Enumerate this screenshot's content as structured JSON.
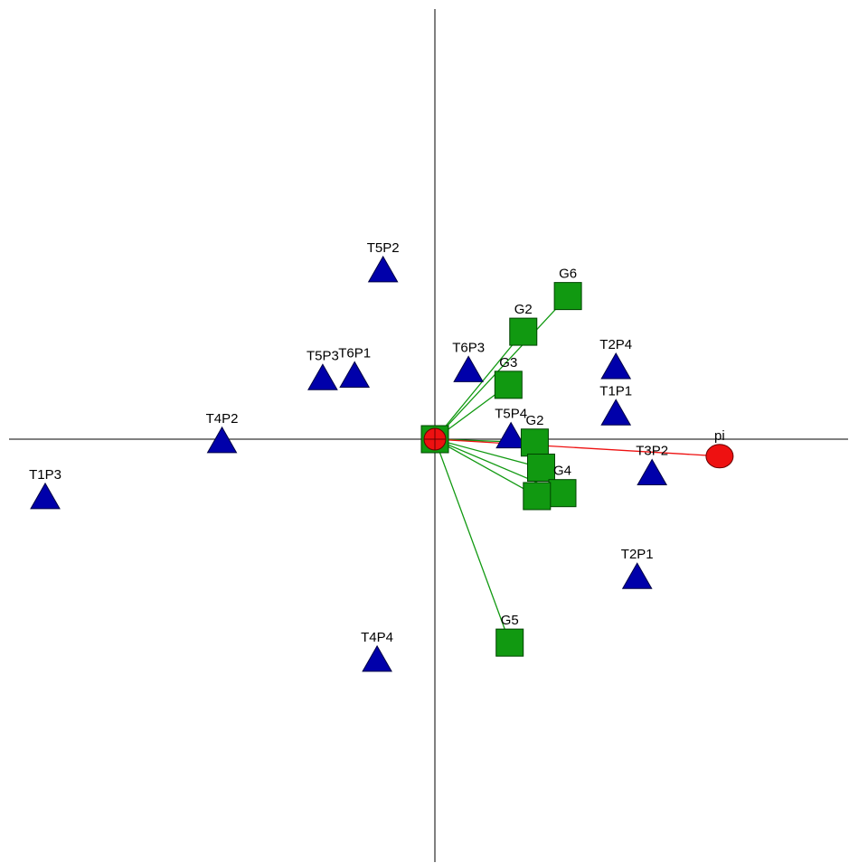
{
  "chart_data": {
    "type": "scatter",
    "title": "",
    "xlabel": "",
    "ylabel": "",
    "xlim": [
      -1.0,
      1.0
    ],
    "ylim": [
      -1.0,
      1.0
    ],
    "grid": false,
    "legend": "none",
    "origin": {
      "x": 0.0,
      "y": 0.0
    },
    "series": [
      {
        "marker": "triangle",
        "color": "#0000aa",
        "points": [
          {
            "label": "T1P3",
            "x": -0.917,
            "y": -0.138
          },
          {
            "label": "T4P2",
            "x": -0.501,
            "y": -0.006
          },
          {
            "label": "T5P3",
            "x": -0.264,
            "y": 0.142
          },
          {
            "label": "T6P1",
            "x": -0.189,
            "y": 0.148
          },
          {
            "label": "T5P2",
            "x": -0.122,
            "y": 0.396
          },
          {
            "label": "T6P3",
            "x": 0.079,
            "y": 0.161
          },
          {
            "label": "T5P4",
            "x": 0.179,
            "y": 0.005
          },
          {
            "label": "T2P4",
            "x": 0.426,
            "y": 0.168
          },
          {
            "label": "T1P1",
            "x": 0.426,
            "y": 0.059
          },
          {
            "label": "T3P2",
            "x": 0.511,
            "y": -0.082
          },
          {
            "label": "T2P1",
            "x": 0.476,
            "y": -0.326
          },
          {
            "label": "T4P4",
            "x": -0.136,
            "y": -0.521
          }
        ]
      },
      {
        "marker": "square",
        "color": "#119911",
        "vectors": true,
        "points": [
          {
            "label": "G6",
            "x": 0.313,
            "y": 0.337
          },
          {
            "label": "G2",
            "x": 0.208,
            "y": 0.253
          },
          {
            "label": "G3",
            "x": 0.173,
            "y": 0.128
          },
          {
            "label": "G2",
            "x": 0.235,
            "y": -0.008
          },
          {
            "label": "",
            "x": 0.25,
            "y": -0.067
          },
          {
            "label": "G4",
            "x": 0.3,
            "y": -0.127
          },
          {
            "label": "",
            "x": 0.24,
            "y": -0.134
          },
          {
            "label": "G5",
            "x": 0.176,
            "y": -0.479
          }
        ]
      },
      {
        "marker": "circle",
        "color": "#ee1111",
        "vectors": true,
        "points": [
          {
            "label": "pi",
            "x": 0.67,
            "y": -0.04
          }
        ]
      }
    ]
  }
}
